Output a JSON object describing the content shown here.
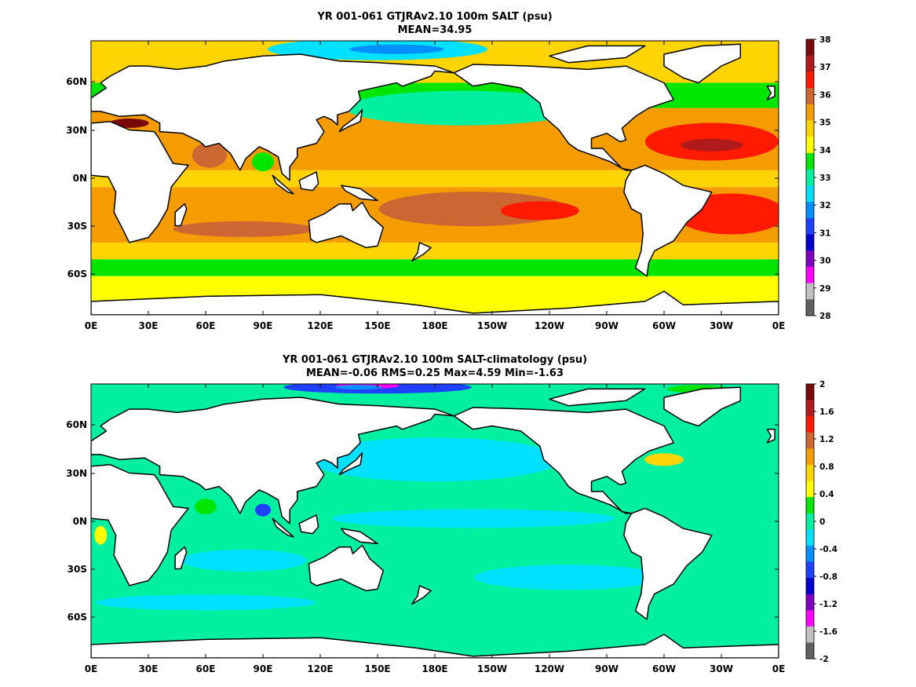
{
  "panels": [
    {
      "id": "salt",
      "title_line1": "YR 001-061 GTJRAv2.10 100m SALT (psu)",
      "title_line2": "MEAN=34.95",
      "lat_ticks": [
        "60N",
        "30N",
        "0N",
        "30S",
        "60S"
      ],
      "lon_ticks": [
        "0E",
        "30E",
        "60E",
        "90E",
        "120E",
        "150E",
        "180E",
        "150W",
        "120W",
        "90W",
        "60W",
        "30W",
        "0E"
      ],
      "colorbar": {
        "labels": [
          "38",
          "37",
          "36",
          "35",
          "34",
          "33",
          "32",
          "31",
          "30",
          "29",
          "28"
        ],
        "colors": [
          "#7a0a0a",
          "#b01a1a",
          "#ff1a00",
          "#cc6633",
          "#f59c00",
          "#ffd400",
          "#ffff00",
          "#00e600",
          "#00f0a0",
          "#00e0ff",
          "#0090ff",
          "#2040ff",
          "#0000d0",
          "#8000c0",
          "#ff00ff",
          "#c0c0c0",
          "#606060"
        ]
      }
    },
    {
      "id": "salt-anom",
      "title_line1": "YR 001-061 GTJRAv2.10 100m SALT-climatology (psu)",
      "title_line2": "MEAN=-0.06   RMS=0.25   Max=4.59   Min=-1.63",
      "lat_ticks": [
        "60N",
        "30N",
        "0N",
        "30S",
        "60S"
      ],
      "lon_ticks": [
        "0E",
        "30E",
        "60E",
        "90E",
        "120E",
        "150E",
        "180E",
        "150W",
        "120W",
        "90W",
        "60W",
        "30W",
        "0E"
      ],
      "colorbar": {
        "labels": [
          "2",
          "1.6",
          "1.2",
          "0.8",
          "0.4",
          "0",
          "-0.4",
          "-0.8",
          "-1.2",
          "-1.6",
          "-2"
        ],
        "colors": [
          "#7a0a0a",
          "#b01a1a",
          "#ff1a00",
          "#cc6633",
          "#f59c00",
          "#ffd400",
          "#ffff00",
          "#00e600",
          "#00f0a0",
          "#00e0ff",
          "#0090ff",
          "#2040ff",
          "#0000d0",
          "#8000c0",
          "#ff00ff",
          "#c0c0c0",
          "#606060"
        ]
      }
    }
  ]
}
